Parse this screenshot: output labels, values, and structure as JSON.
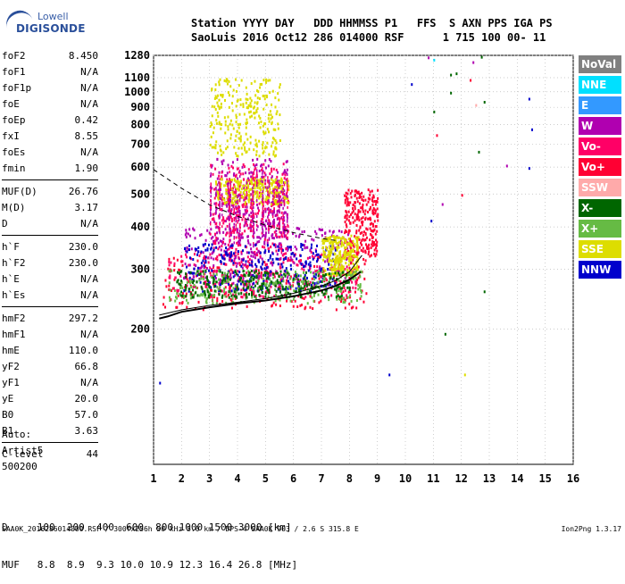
{
  "logo": {
    "line1": "Lowell",
    "line2": "DIGISONDE"
  },
  "header": {
    "row1": "Station YYYY DAY   DDD HHMMSS P1   FFS  S AXN PPS IGA PS",
    "row2": "SaoLuis 2016 Oct12 286 014000 RSF      1 715 100 00- 11"
  },
  "params": [
    {
      "k": "foF2",
      "v": "8.450"
    },
    {
      "k": "foF1",
      "v": "N/A"
    },
    {
      "k": "foF1p",
      "v": "N/A"
    },
    {
      "k": "foE",
      "v": "N/A"
    },
    {
      "k": "foEp",
      "v": "0.42"
    },
    {
      "k": "fxI",
      "v": "8.55"
    },
    {
      "k": "foEs",
      "v": "N/A"
    },
    {
      "k": "fmin",
      "v": "1.90"
    },
    {
      "k": "MUF(D)",
      "v": "26.76"
    },
    {
      "k": "M(D)",
      "v": "3.17"
    },
    {
      "k": "D",
      "v": "N/A"
    },
    {
      "k": "h`F",
      "v": "230.0"
    },
    {
      "k": "h`F2",
      "v": "230.0"
    },
    {
      "k": "h`E",
      "v": "N/A"
    },
    {
      "k": "h`Es",
      "v": "N/A"
    },
    {
      "k": "hmF2",
      "v": "297.2"
    },
    {
      "k": "hmF1",
      "v": "N/A"
    },
    {
      "k": "hmE",
      "v": "110.0"
    },
    {
      "k": "yF2",
      "v": "66.8"
    },
    {
      "k": "yF1",
      "v": "N/A"
    },
    {
      "k": "yE",
      "v": "20.0"
    },
    {
      "k": "B0",
      "v": "57.0"
    },
    {
      "k": "B1",
      "v": "3.63"
    },
    {
      "k": "C-level",
      "v": "44"
    }
  ],
  "auto": {
    "line1": "Auto:",
    "line2": "Artist5",
    "line3": "500200"
  },
  "freqtable": {
    "row1": "D     100  200  400  600  800 1000 1500 3000 [km]",
    "row2": "MUF   8.8  8.9  9.3 10.0 10.9 12.3 16.4 26.8 [MHz]"
  },
  "footer": {
    "left": "SAA0K_2016286014000.RSF / 300fx256h 50 kHz 5.0 km / DPS-4 SAA0K 903 / 2.6 S 315.8 E",
    "right": "Ion2Png 1.3.17"
  },
  "legend": [
    {
      "label": "NoVal",
      "bg": "#808080",
      "fg": "#ffffff"
    },
    {
      "label": "NNE",
      "bg": "#00e0ff",
      "fg": "#ffffff"
    },
    {
      "label": "E",
      "bg": "#3399ff",
      "fg": "#ffffff"
    },
    {
      "label": "W",
      "bg": "#b000b0",
      "fg": "#ffffff"
    },
    {
      "label": "Vo-",
      "bg": "#ff0066",
      "fg": "#ffffff"
    },
    {
      "label": "Vo+",
      "bg": "#ff0033",
      "fg": "#ffffff"
    },
    {
      "label": "SSW",
      "bg": "#ffaaaa",
      "fg": "#ffffff"
    },
    {
      "label": "X-",
      "bg": "#006600",
      "fg": "#ffffff"
    },
    {
      "label": "X+",
      "bg": "#66bb44",
      "fg": "#ffffff"
    },
    {
      "label": "SSE",
      "bg": "#dddd00",
      "fg": "#ffffff"
    },
    {
      "label": "NNW",
      "bg": "#0000cc",
      "fg": "#ffffff"
    }
  ],
  "chart_data": {
    "type": "scatter",
    "xticks": [
      1,
      2,
      3,
      4,
      5,
      6,
      7,
      8,
      9,
      10,
      11,
      12,
      13,
      14,
      15,
      16
    ],
    "yticks": [
      200,
      300,
      400,
      500,
      600,
      700,
      800,
      900,
      1000,
      1100,
      1280
    ],
    "ytick_labels": [
      "200",
      "300",
      "400",
      "500",
      "600",
      "700",
      "800",
      "900",
      "1000",
      "1100",
      "1280"
    ],
    "xlim": [
      1,
      16
    ],
    "ylim": [
      80,
      1280
    ],
    "yscale": "log",
    "trace": [
      [
        1.2,
        215
      ],
      [
        1.5,
        218
      ],
      [
        2.0,
        225
      ],
      [
        3.0,
        232
      ],
      [
        4.0,
        238
      ],
      [
        5.0,
        243
      ],
      [
        6.0,
        250
      ],
      [
        7.0,
        260
      ],
      [
        7.5,
        268
      ],
      [
        8.0,
        280
      ],
      [
        8.4,
        295
      ]
    ],
    "profile": [
      [
        1.2,
        220
      ],
      [
        2.0,
        228
      ],
      [
        3.0,
        235
      ],
      [
        4.0,
        240
      ],
      [
        5.0,
        246
      ],
      [
        6.0,
        255
      ],
      [
        7.0,
        268
      ],
      [
        7.5,
        278
      ],
      [
        8.0,
        295
      ],
      [
        8.45,
        330
      ]
    ],
    "dashed": [
      [
        1.0,
        590
      ],
      [
        2.0,
        520
      ],
      [
        3.0,
        465
      ],
      [
        4.0,
        430
      ],
      [
        5.0,
        405
      ],
      [
        6.0,
        385
      ],
      [
        7.0,
        370
      ],
      [
        7.5,
        365
      ]
    ],
    "blobs": [
      {
        "x": [
          1.3,
          8.6
        ],
        "y": [
          230,
          330
        ],
        "c": "#ff0033"
      },
      {
        "x": [
          1.5,
          8.3
        ],
        "y": [
          250,
          340
        ],
        "c": "#ff0066"
      },
      {
        "x": [
          2.0,
          8.0
        ],
        "y": [
          270,
          400
        ],
        "c": "#b000b0"
      },
      {
        "x": [
          3.0,
          5.8
        ],
        "y": [
          320,
          640
        ],
        "c": "#b000b0"
      },
      {
        "x": [
          3.0,
          5.8
        ],
        "y": [
          330,
          620
        ],
        "c": "#ff0066"
      },
      {
        "x": [
          2.0,
          7.5
        ],
        "y": [
          260,
          360
        ],
        "c": "#0000cc"
      },
      {
        "x": [
          3.2,
          5.8
        ],
        "y": [
          470,
          560
        ],
        "c": "#dddd00"
      },
      {
        "x": [
          3.0,
          5.5
        ],
        "y": [
          650,
          1100
        ],
        "c": "#dddd00"
      },
      {
        "x": [
          7.8,
          9.0
        ],
        "y": [
          330,
          520
        ],
        "c": "#ff0033"
      },
      {
        "x": [
          7.0,
          8.3
        ],
        "y": [
          290,
          380
        ],
        "c": "#dddd00"
      },
      {
        "x": [
          1.5,
          8.5
        ],
        "y": [
          240,
          300
        ],
        "c": "#66bb44"
      },
      {
        "x": [
          1.8,
          8.0
        ],
        "y": [
          250,
          300
        ],
        "c": "#006600"
      }
    ],
    "isolated": [
      [
        10.2,
        1060,
        "#0000cc"
      ],
      [
        10.8,
        1270,
        "#b000b0"
      ],
      [
        11.0,
        1250,
        "#00e0ff"
      ],
      [
        11.6,
        1130,
        "#006600"
      ],
      [
        11.8,
        1140,
        "#006600"
      ],
      [
        12.3,
        1090,
        "#ff0033"
      ],
      [
        12.7,
        1275,
        "#006600"
      ],
      [
        12.4,
        1230,
        "#b000b0"
      ],
      [
        11.6,
        1000,
        "#006600"
      ],
      [
        12.5,
        920,
        "#ffaaaa"
      ],
      [
        12.8,
        940,
        "#006600"
      ],
      [
        14.4,
        960,
        "#0000cc"
      ],
      [
        11.0,
        880,
        "#006600"
      ],
      [
        13.6,
        610,
        "#b000b0"
      ],
      [
        14.4,
        600,
        "#0000cc"
      ],
      [
        12.0,
        500,
        "#ff0033"
      ],
      [
        11.3,
        470,
        "#b000b0"
      ],
      [
        10.9,
        420,
        "#0000cc"
      ],
      [
        12.8,
        260,
        "#006600"
      ],
      [
        11.4,
        195,
        "#006600"
      ],
      [
        12.1,
        148,
        "#dddd00"
      ],
      [
        9.4,
        148,
        "#0000cc"
      ],
      [
        1.2,
        140,
        "#0000cc"
      ],
      [
        14.5,
        780,
        "#0000cc"
      ],
      [
        11.1,
        750,
        "#ff0033"
      ],
      [
        12.6,
        670,
        "#006600"
      ]
    ]
  }
}
